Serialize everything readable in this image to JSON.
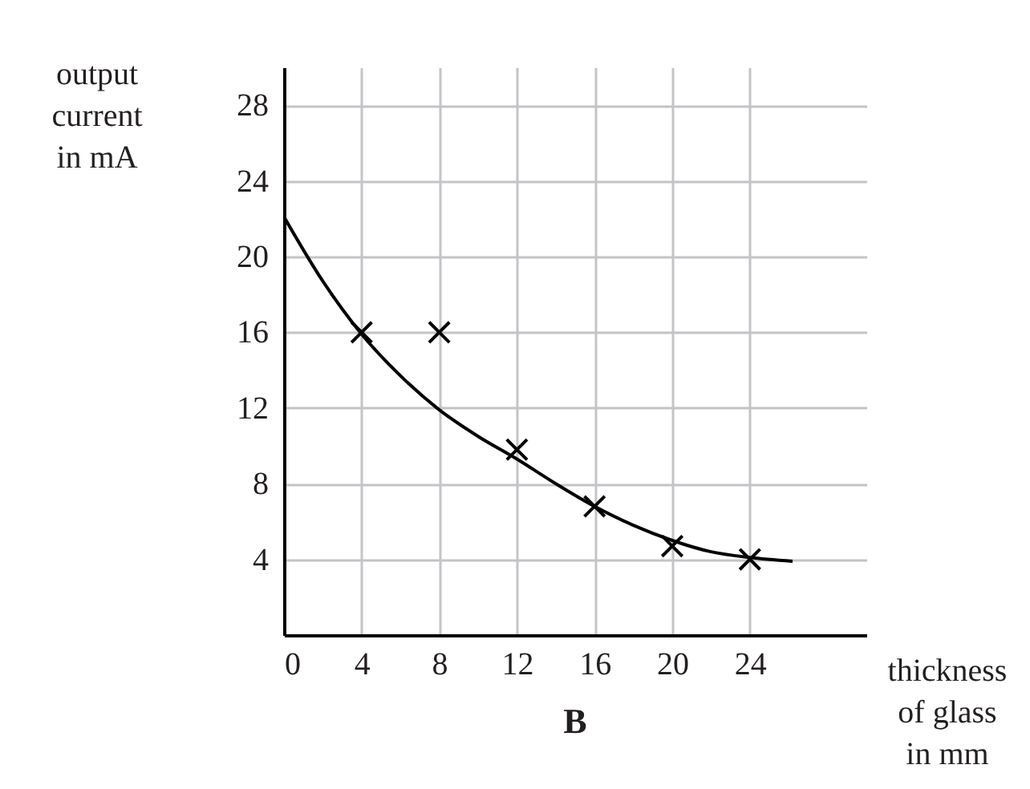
{
  "chart_data": {
    "type": "scatter",
    "title": "B",
    "xlabel": "thickness\nof glass\nin mm",
    "ylabel": "output\ncurrent\nin mA",
    "xlim": [
      0,
      30
    ],
    "ylim": [
      0,
      30
    ],
    "xticks": [
      0,
      4,
      8,
      12,
      16,
      20,
      24
    ],
    "yticks": [
      4,
      8,
      12,
      16,
      20,
      24,
      28
    ],
    "grid": true,
    "series": [
      {
        "type": "line",
        "color": "#000000",
        "x": [
          0,
          2,
          4,
          6,
          8,
          10,
          12,
          14,
          16,
          18,
          20,
          22,
          24,
          26.2
        ],
        "values": [
          22.1,
          18.7,
          15.9,
          13.7,
          11.9,
          10.5,
          9.3,
          8,
          6.8,
          5.8,
          5,
          4.4,
          4.1,
          3.9
        ]
      },
      {
        "color": "#000000",
        "marker": "cross",
        "x": [
          4,
          8,
          12,
          16,
          20,
          24
        ],
        "values": [
          16,
          16,
          9.8,
          6.8,
          4.7,
          4
        ]
      }
    ]
  }
}
